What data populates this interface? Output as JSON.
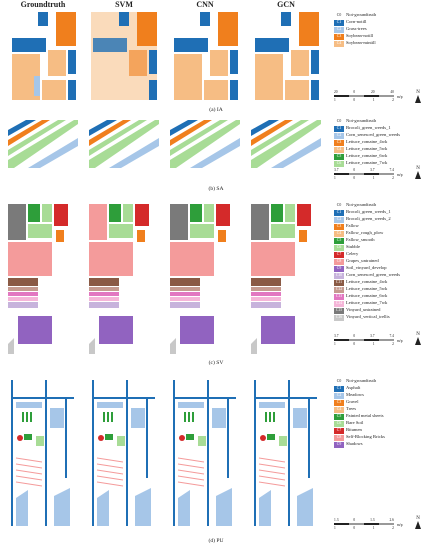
{
  "columns": [
    "Groundtruth",
    "SVM",
    "CNN",
    "GCN"
  ],
  "sections": [
    {
      "caption": "(a) IA",
      "legend": [
        {
          "code": "C0",
          "label": "Not-groundtruth",
          "color": "#ffffff"
        },
        {
          "code": "C1",
          "label": "Corn-notill",
          "color": "#1f6fb5"
        },
        {
          "code": "C2",
          "label": "Grass-trees",
          "color": "#a6c6e8"
        },
        {
          "code": "C3",
          "label": "Soybean-notill",
          "color": "#f07f1d"
        },
        {
          "code": "C4",
          "label": "Soybean-mintill",
          "color": "#f6bd84"
        }
      ],
      "scale": {
        "top": [
          "20",
          "0",
          "20",
          "40"
        ],
        "unit": "m/p",
        "bottom": [
          "1",
          "0",
          "1",
          "2"
        ]
      }
    },
    {
      "caption": "(b) SA",
      "legend": [
        {
          "code": "C0",
          "label": "Not-groundtruth",
          "color": "#ffffff"
        },
        {
          "code": "C1",
          "label": "Brocoli_green_weeds_1",
          "color": "#1f6fb5"
        },
        {
          "code": "C2",
          "label": "Corn_senesced_green_weeds",
          "color": "#a6c6e8"
        },
        {
          "code": "C3",
          "label": "Lettuce_romaine_4wk",
          "color": "#f07f1d"
        },
        {
          "code": "C4",
          "label": "Lettuce_romaine_5wk",
          "color": "#f6bd84"
        },
        {
          "code": "C5",
          "label": "Lettuce_romaine_6wk",
          "color": "#2e9e3a"
        },
        {
          "code": "C6",
          "label": "Lettuce_romaine_7wk",
          "color": "#a8dc96"
        }
      ],
      "scale": {
        "top": [
          "3.7",
          "0",
          "3.7",
          "7.4"
        ],
        "unit": "m/p",
        "bottom": [
          "1",
          "0",
          "1",
          "2"
        ]
      }
    },
    {
      "caption": "(c) SV",
      "legend": [
        {
          "code": "C0",
          "label": "Not-groundtruth",
          "color": "#ffffff"
        },
        {
          "code": "C1",
          "label": "Brocoli_green_weeds_1",
          "color": "#1f6fb5"
        },
        {
          "code": "C2",
          "label": "Brocoli_green_weeds_2",
          "color": "#a6c6e8"
        },
        {
          "code": "C3",
          "label": "Fallow",
          "color": "#f07f1d"
        },
        {
          "code": "C4",
          "label": "Fallow_rough_plow",
          "color": "#f6bd84"
        },
        {
          "code": "C5",
          "label": "Fallow_smooth",
          "color": "#2e9e3a"
        },
        {
          "code": "C6",
          "label": "Stubble",
          "color": "#a8dc96"
        },
        {
          "code": "C7",
          "label": "Celery",
          "color": "#d42a2a"
        },
        {
          "code": "C8",
          "label": "Grapes_untrained",
          "color": "#f49b9b"
        },
        {
          "code": "C9",
          "label": "Soil_vinyard_develop",
          "color": "#9163c0"
        },
        {
          "code": "C10",
          "label": "Corn_senesced_green_weeds",
          "color": "#c7b3dc"
        },
        {
          "code": "C11",
          "label": "Lettuce_romaine_4wk",
          "color": "#8a5a45"
        },
        {
          "code": "C12",
          "label": "Lettuce_romaine_5wk",
          "color": "#c59b90"
        },
        {
          "code": "C13",
          "label": "Lettuce_romaine_6wk",
          "color": "#e277c1"
        },
        {
          "code": "C14",
          "label": "Lettuce_romaine_7wk",
          "color": "#f5b5d8"
        },
        {
          "code": "C15",
          "label": "Vinyard_untrained",
          "color": "#7a7a7a"
        },
        {
          "code": "C16",
          "label": "Vinyard_vertical_trellis",
          "color": "#c8c8c8"
        }
      ],
      "scale": {
        "top": [
          "3.7",
          "0",
          "3.7",
          "7.4"
        ],
        "unit": "m/p",
        "bottom": [
          "1",
          "0",
          "1",
          "2"
        ]
      }
    },
    {
      "caption": "(d) PU",
      "legend": [
        {
          "code": "C0",
          "label": "Not-groundtruth",
          "color": "#ffffff"
        },
        {
          "code": "C1",
          "label": "Asphalt",
          "color": "#1f6fb5"
        },
        {
          "code": "C2",
          "label": "Meadows",
          "color": "#a6c6e8"
        },
        {
          "code": "C3",
          "label": "Gravel",
          "color": "#f07f1d"
        },
        {
          "code": "C4",
          "label": "Trees",
          "color": "#f6bd84"
        },
        {
          "code": "C5",
          "label": "Painted metal sheets",
          "color": "#2e9e3a"
        },
        {
          "code": "C6",
          "label": "Bare Soil",
          "color": "#a8dc96"
        },
        {
          "code": "C7",
          "label": "Bitumen",
          "color": "#d42a2a"
        },
        {
          "code": "C8",
          "label": "Self-Blocking Bricks",
          "color": "#f49b9b"
        },
        {
          "code": "C9",
          "label": "Shadows",
          "color": "#9163c0"
        }
      ],
      "scale": {
        "top": [
          "1.3",
          "0",
          "1.3",
          "2.6"
        ],
        "unit": "m/p",
        "bottom": [
          "1",
          "0",
          "1",
          "2"
        ]
      }
    }
  ],
  "north_label": "N"
}
